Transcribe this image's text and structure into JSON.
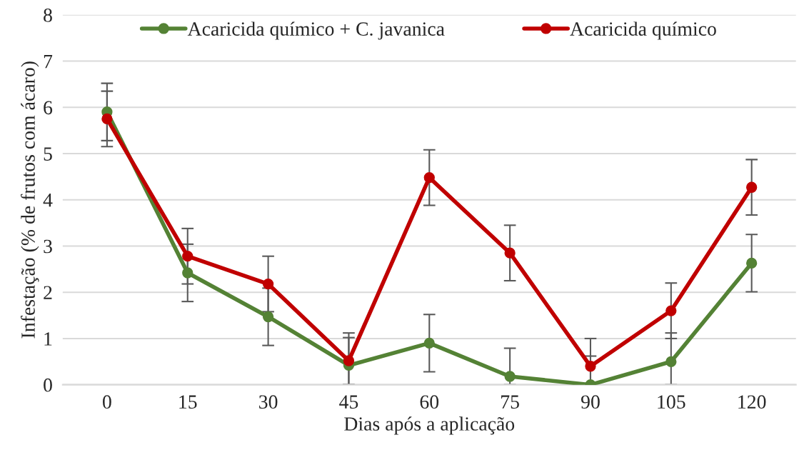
{
  "chart_data": {
    "type": "line",
    "xlabel": "Dias após a aplicação",
    "ylabel": "Infestação (% de frutos com ácaro)",
    "categories": [
      "0",
      "15",
      "30",
      "45",
      "60",
      "75",
      "90",
      "105",
      "120"
    ],
    "series": [
      {
        "name": "Acaricida químico + C. javanica",
        "color": "#548235",
        "values": [
          5.9,
          2.42,
          1.47,
          0.42,
          0.9,
          0.18,
          0,
          0.5,
          2.63
        ],
        "errors": [
          [
            5.28,
            6.52
          ],
          [
            1.8,
            3.04
          ],
          [
            0.85,
            2.09
          ],
          [
            0,
            1.02
          ],
          [
            0.28,
            1.52
          ],
          [
            0,
            0.79
          ],
          [
            0,
            0.62
          ],
          [
            0,
            1.12
          ],
          [
            2.01,
            3.25
          ]
        ]
      },
      {
        "name": "Acaricida químico",
        "color": "#c00000",
        "values": [
          5.75,
          2.78,
          2.18,
          0.52,
          4.48,
          2.85,
          0.4,
          1.6,
          4.27
        ],
        "errors": [
          [
            5.15,
            6.35
          ],
          [
            2.18,
            3.38
          ],
          [
            1.58,
            2.78
          ],
          [
            0,
            1.12
          ],
          [
            3.88,
            5.08
          ],
          [
            2.25,
            3.45
          ],
          [
            0,
            1.0
          ],
          [
            1.0,
            2.2
          ],
          [
            3.67,
            4.87
          ]
        ]
      }
    ],
    "ylim": [
      0,
      8
    ],
    "yticks": [
      0,
      1,
      2,
      3,
      4,
      5,
      6,
      7,
      8
    ],
    "grid": "y",
    "legend": "top",
    "marker": "circle",
    "line_style": "solid"
  }
}
